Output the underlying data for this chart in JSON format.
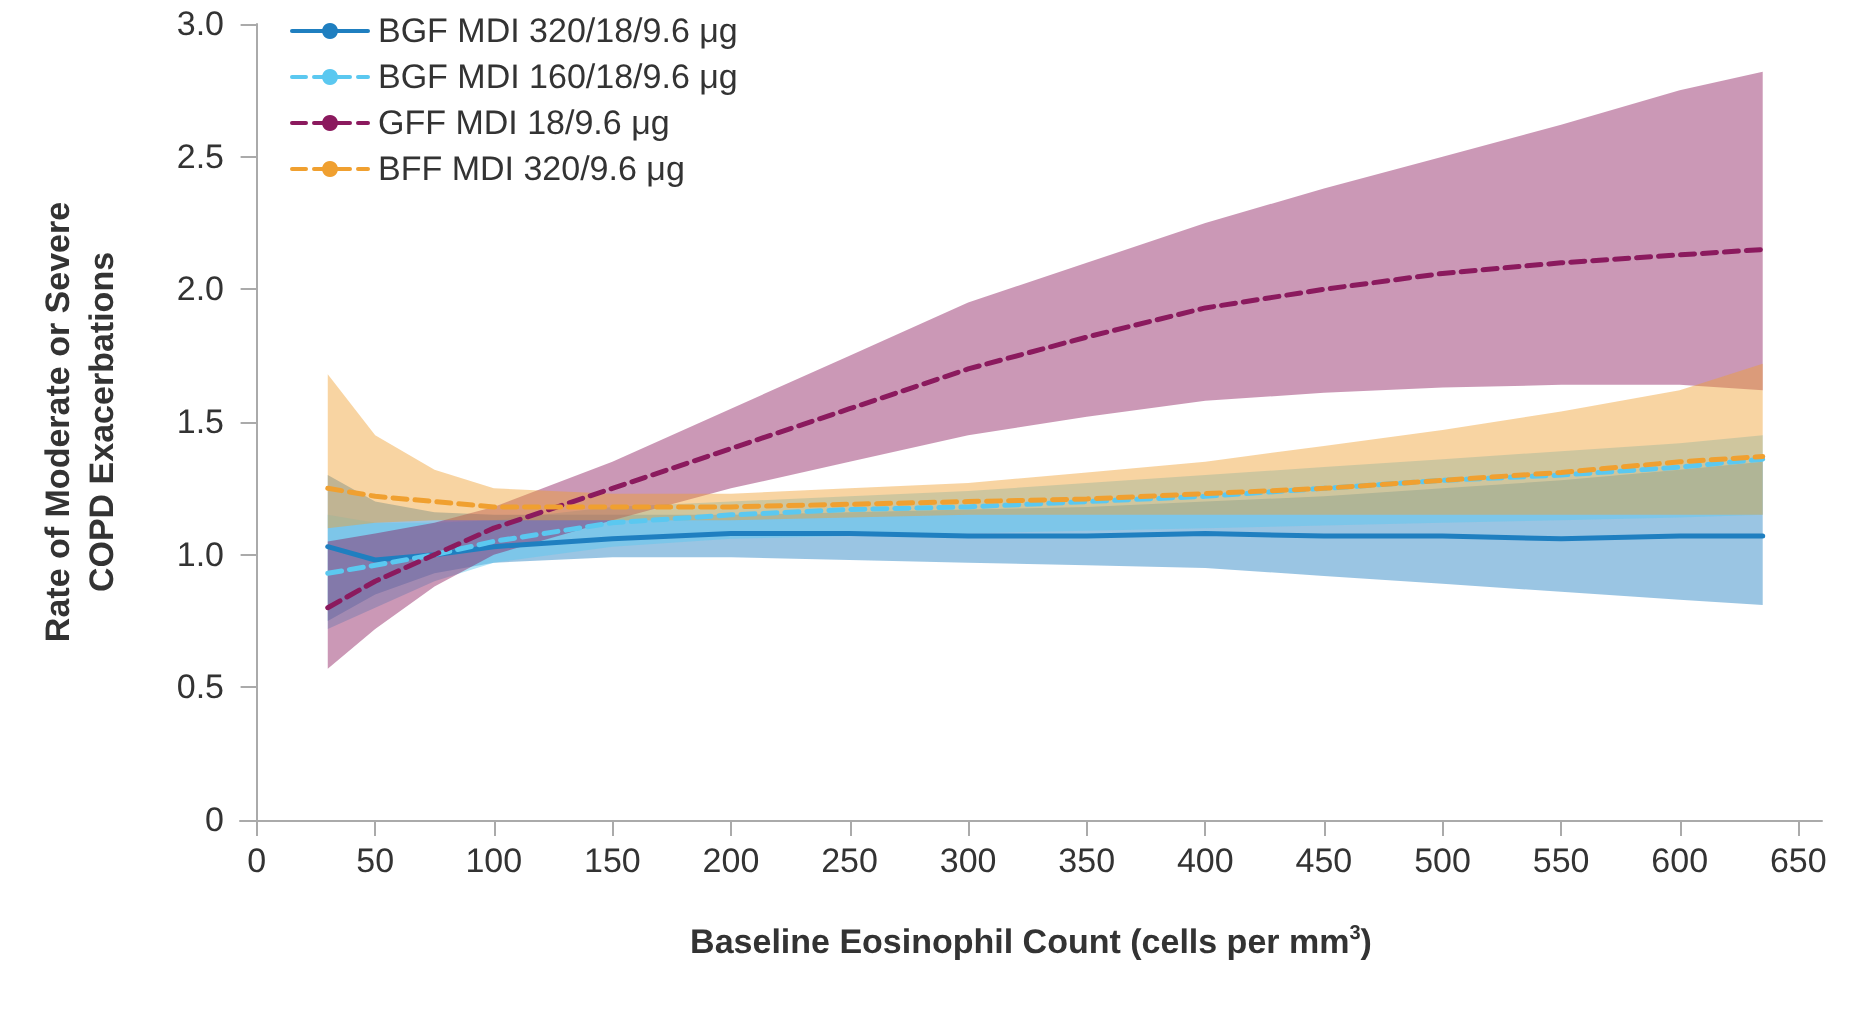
{
  "chart_data": {
    "type": "line",
    "xlabel": "Baseline Eosinophil Count (cells per mm$^{3}$)",
    "ylabel": "Rate of Moderate or Severe\nCOPD Exacerbations",
    "x": [
      30,
      50,
      75,
      100,
      150,
      200,
      250,
      300,
      350,
      400,
      450,
      500,
      550,
      600,
      635
    ],
    "series": [
      {
        "name": "BGF MDI 320/18/9.6 μg",
        "color": "#1f7fc0",
        "line_style": "solid",
        "values": [
          1.03,
          0.98,
          1.0,
          1.03,
          1.06,
          1.08,
          1.08,
          1.07,
          1.07,
          1.08,
          1.07,
          1.07,
          1.06,
          1.07,
          1.07
        ],
        "lower": [
          0.75,
          0.85,
          0.93,
          0.97,
          0.99,
          0.99,
          0.98,
          0.97,
          0.96,
          0.95,
          0.92,
          0.89,
          0.86,
          0.83,
          0.81
        ],
        "upper": [
          1.3,
          1.2,
          1.16,
          1.15,
          1.15,
          1.15,
          1.16,
          1.17,
          1.18,
          1.2,
          1.22,
          1.25,
          1.28,
          1.32,
          1.35
        ]
      },
      {
        "name": "BGF MDI 160/18/9.6 μg",
        "color": "#5bc8f0",
        "line_style": "dashed",
        "values": [
          0.93,
          0.96,
          1.0,
          1.05,
          1.12,
          1.15,
          1.17,
          1.18,
          1.2,
          1.22,
          1.25,
          1.28,
          1.3,
          1.33,
          1.36
        ],
        "lower": [
          0.72,
          0.8,
          0.9,
          0.97,
          1.03,
          1.06,
          1.07,
          1.08,
          1.09,
          1.1,
          1.11,
          1.12,
          1.13,
          1.14,
          1.15
        ],
        "upper": [
          1.15,
          1.12,
          1.12,
          1.13,
          1.18,
          1.2,
          1.22,
          1.24,
          1.27,
          1.3,
          1.33,
          1.36,
          1.39,
          1.42,
          1.45
        ]
      },
      {
        "name": "GFF MDI 18/9.6 μg",
        "color": "#8b1a5e",
        "line_style": "dashed",
        "values": [
          0.8,
          0.9,
          1.0,
          1.1,
          1.25,
          1.4,
          1.55,
          1.7,
          1.82,
          1.93,
          2.0,
          2.06,
          2.1,
          2.13,
          2.15
        ],
        "lower": [
          0.57,
          0.72,
          0.88,
          1.0,
          1.13,
          1.25,
          1.35,
          1.45,
          1.52,
          1.58,
          1.61,
          1.63,
          1.64,
          1.64,
          1.62
        ],
        "upper": [
          1.05,
          1.08,
          1.12,
          1.18,
          1.35,
          1.55,
          1.75,
          1.95,
          2.1,
          2.25,
          2.38,
          2.5,
          2.62,
          2.75,
          2.82
        ]
      },
      {
        "name": "BFF MDI 320/9.6 μg",
        "color": "#f0a030",
        "line_style": "dashed",
        "values": [
          1.25,
          1.22,
          1.2,
          1.18,
          1.18,
          1.18,
          1.19,
          1.2,
          1.21,
          1.23,
          1.25,
          1.28,
          1.31,
          1.35,
          1.37
        ],
        "lower": [
          1.1,
          1.12,
          1.13,
          1.13,
          1.13,
          1.13,
          1.14,
          1.15,
          1.15,
          1.15,
          1.15,
          1.15,
          1.15,
          1.15,
          1.15
        ],
        "upper": [
          1.68,
          1.45,
          1.32,
          1.25,
          1.23,
          1.23,
          1.25,
          1.27,
          1.31,
          1.35,
          1.41,
          1.47,
          1.54,
          1.62,
          1.72
        ]
      }
    ],
    "xlim": [
      -7,
      660
    ],
    "xticks": [
      0,
      50,
      100,
      150,
      200,
      250,
      300,
      350,
      400,
      450,
      500,
      550,
      600,
      650
    ],
    "ylim": [
      0,
      3
    ],
    "yticks": [
      {
        "value": 0,
        "label": "0"
      },
      {
        "value": 0.5,
        "label": "0.5"
      },
      {
        "value": 1,
        "label": "1.0"
      },
      {
        "value": 1.5,
        "label": "1.5"
      },
      {
        "value": 2,
        "label": "2.0"
      },
      {
        "value": 2.5,
        "label": "2.5"
      },
      {
        "value": 3,
        "label": "3.0"
      }
    ],
    "grid": false,
    "legend": "top left",
    "marker": "none"
  }
}
